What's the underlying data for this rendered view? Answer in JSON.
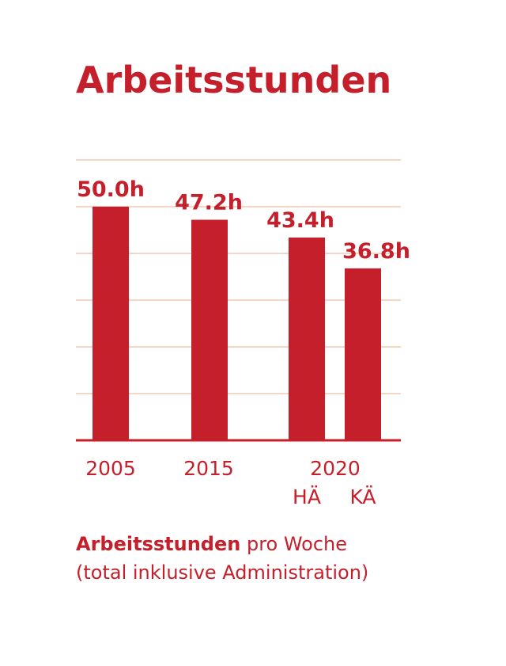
{
  "colors": {
    "accent": "#c41f2a",
    "grid": "#f2c7b4",
    "background": "#ffffff"
  },
  "chart_data": {
    "type": "bar",
    "title": "Arbeitsstunden",
    "unit": "h",
    "categories": [
      "2005",
      "2015",
      "2020 HÄ",
      "2020 KÄ"
    ],
    "values": [
      50.0,
      47.2,
      43.4,
      36.8
    ],
    "value_labels": [
      "50.0h",
      "47.2h",
      "43.4h",
      "36.8h"
    ],
    "tick_labels": {
      "year_2005": "2005",
      "year_2015": "2015",
      "year_2020": "2020",
      "sub_ha": "HÄ",
      "sub_ka": "KÄ"
    },
    "ylim": [
      0,
      60
    ],
    "grid_step": 10,
    "grid": true,
    "caption": {
      "bold": "Arbeitsstunden",
      "rest": " pro Woche",
      "line2": "(total inklusive Administration)"
    }
  }
}
